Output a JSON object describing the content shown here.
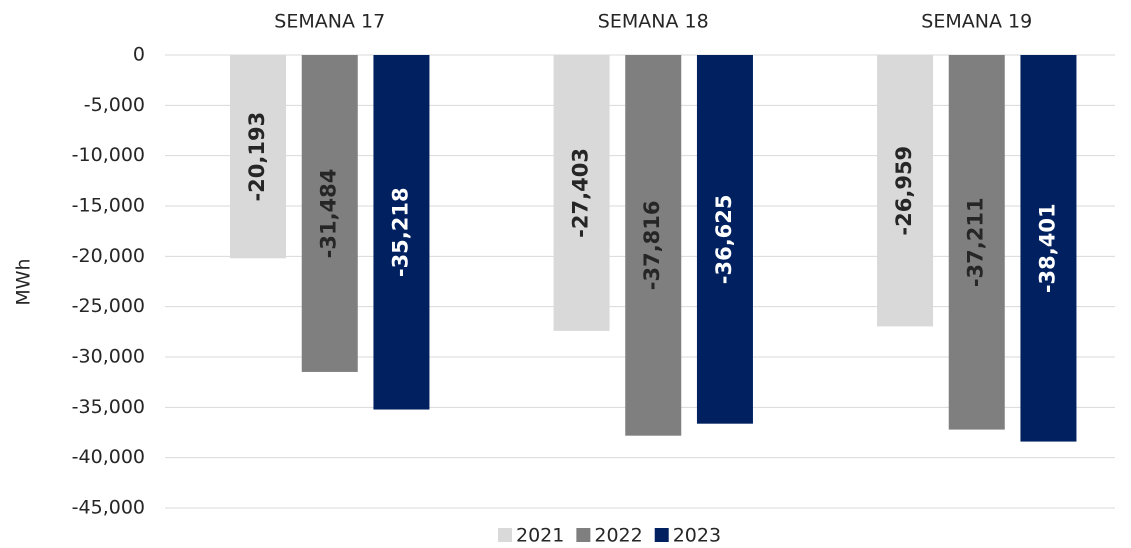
{
  "chart_data": {
    "type": "bar",
    "categories": [
      "SEMANA 17",
      "SEMANA 18",
      "SEMANA 19"
    ],
    "y_label": "MWh",
    "ylim": [
      -45000,
      0
    ],
    "yticks": [
      0,
      {
        "value": -5000,
        "label": "-5,000"
      },
      {
        "value": -10000,
        "label": "-10,000"
      },
      {
        "value": -15000,
        "label": "-15,000"
      },
      {
        "value": -20000,
        "label": "-20,000"
      },
      {
        "value": -25000,
        "label": "-25,000"
      },
      {
        "value": -30000,
        "label": "-30,000"
      },
      {
        "value": -35000,
        "label": "-35,000"
      },
      {
        "value": -40000,
        "label": "-40,000"
      },
      {
        "value": -45000,
        "label": "-45,000"
      }
    ],
    "grid": true,
    "legend": "bottom",
    "series": [
      {
        "name": "2021",
        "color": "#d9d9d9",
        "label_color": "#262626",
        "values": [
          -20193,
          -27403,
          -26959
        ],
        "value_labels": [
          "-20,193",
          "-27,403",
          "-26,959"
        ]
      },
      {
        "name": "2022",
        "color": "#7f7f7f",
        "label_color": "#262626",
        "values": [
          -31484,
          -37816,
          -37211
        ],
        "value_labels": [
          "-31,484",
          "-37,816",
          "-37,211"
        ]
      },
      {
        "name": "2023",
        "color": "#002060",
        "label_color": "#ffffff",
        "values": [
          -35218,
          -36625,
          -38401
        ],
        "value_labels": [
          "-35,218",
          "-36,625",
          "-38,401"
        ]
      }
    ]
  }
}
